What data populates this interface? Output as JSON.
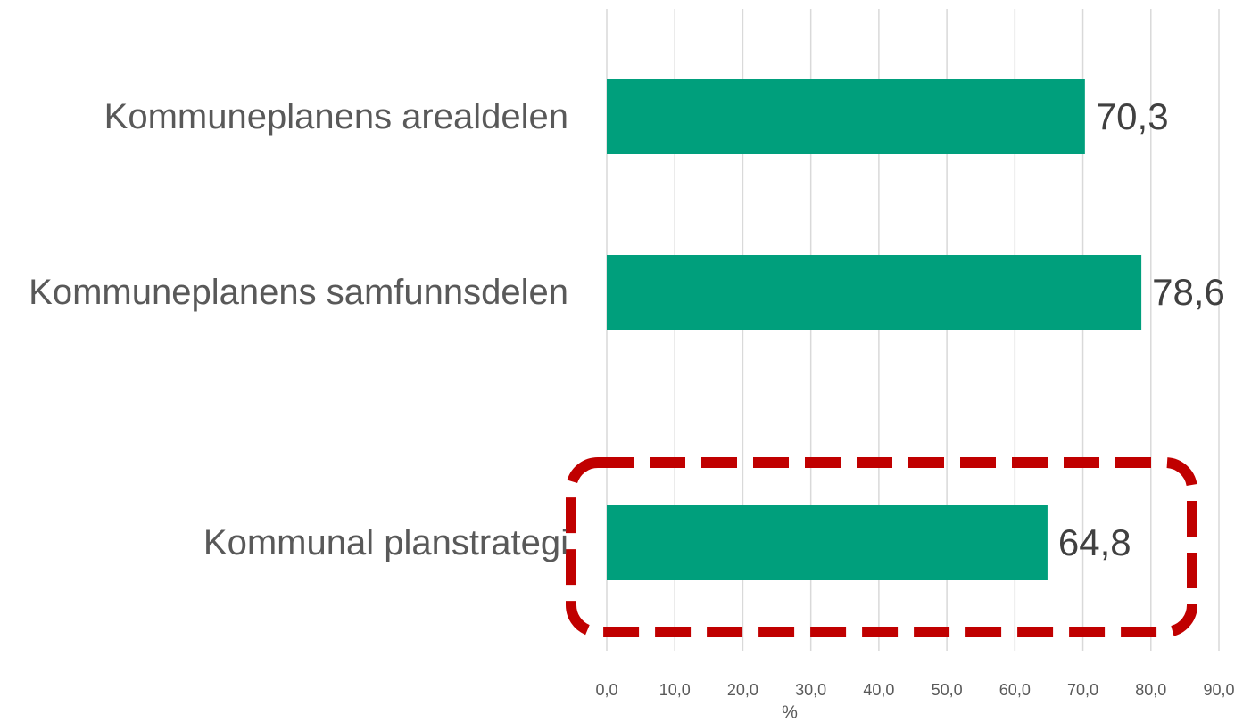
{
  "chart_data": {
    "type": "bar",
    "orientation": "horizontal",
    "categories": [
      "Kommuneplanens arealdelen",
      "Kommuneplanens samfunnsdelen",
      "Kommunal planstrategi"
    ],
    "values": [
      70.3,
      78.6,
      64.8
    ],
    "value_labels": [
      "70,3",
      "78,6",
      "64,8"
    ],
    "color": "#009f7c",
    "xlabel": "%",
    "xlim": [
      0,
      90
    ],
    "xticks": [
      {
        "value": 0,
        "label": "0,0"
      },
      {
        "value": 10,
        "label": "10,0"
      },
      {
        "value": 20,
        "label": "20,0"
      },
      {
        "value": 30,
        "label": "30,0"
      },
      {
        "value": 40,
        "label": "40,0"
      },
      {
        "value": 50,
        "label": "50,0"
      },
      {
        "value": 60,
        "label": "60,0"
      },
      {
        "value": 70,
        "label": "70,0"
      },
      {
        "value": 80,
        "label": "80,0"
      },
      {
        "value": 90,
        "label": "90,0"
      }
    ],
    "grid": true
  }
}
